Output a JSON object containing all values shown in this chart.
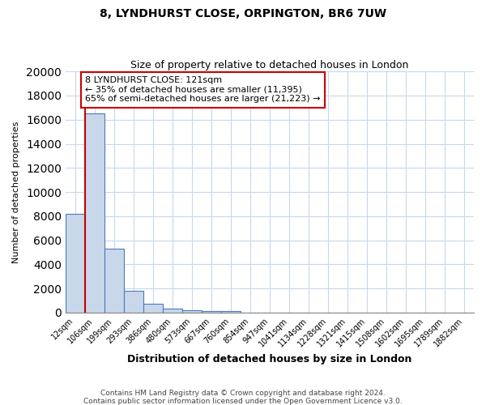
{
  "title": "8, LYNDHURST CLOSE, ORPINGTON, BR6 7UW",
  "subtitle": "Size of property relative to detached houses in London",
  "xlabel": "Distribution of detached houses by size in London",
  "ylabel": "Number of detached properties",
  "categories": [
    "12sqm",
    "106sqm",
    "199sqm",
    "293sqm",
    "386sqm",
    "480sqm",
    "573sqm",
    "667sqm",
    "760sqm",
    "854sqm",
    "947sqm",
    "1041sqm",
    "1134sqm",
    "1228sqm",
    "1321sqm",
    "1415sqm",
    "1508sqm",
    "1602sqm",
    "1695sqm",
    "1789sqm",
    "1882sqm"
  ],
  "bar_values": [
    8200,
    16500,
    5300,
    1800,
    750,
    300,
    200,
    150,
    100,
    0,
    0,
    0,
    0,
    0,
    0,
    0,
    0,
    0,
    0,
    0,
    0
  ],
  "bar_color": "#c8d8ea",
  "bar_edge_color": "#4a7abf",
  "property_line_color": "#cc0000",
  "annotation_text": "8 LYNDHURST CLOSE: 121sqm\n← 35% of detached houses are smaller (11,395)\n65% of semi-detached houses are larger (21,223) →",
  "annotation_box_color": "#ffffff",
  "annotation_edge_color": "#cc0000",
  "ylim": [
    0,
    20000
  ],
  "yticks": [
    0,
    2000,
    4000,
    6000,
    8000,
    10000,
    12000,
    14000,
    16000,
    18000,
    20000
  ],
  "footnote1": "Contains HM Land Registry data © Crown copyright and database right 2024.",
  "footnote2": "Contains public sector information licensed under the Open Government Licence v3.0.",
  "bg_color": "#ffffff",
  "plot_bg_color": "#ffffff",
  "grid_color": "#c8d8ea"
}
